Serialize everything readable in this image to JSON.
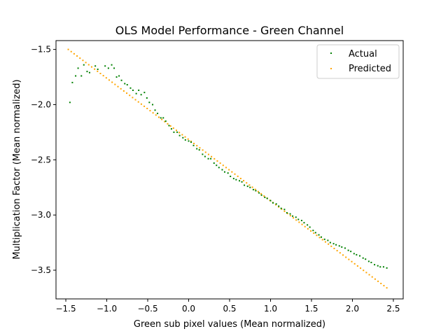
{
  "chart_data": {
    "type": "scatter",
    "title": "OLS Model Performance - Green Channel",
    "xlabel": "Green sub pixel values (Mean normalized)",
    "ylabel": "Multiplication Factor (Mean normalized)",
    "xlim": [
      -1.62,
      2.62
    ],
    "ylim": [
      -3.76,
      -1.42
    ],
    "xticks": [
      -1.5,
      -1.0,
      -0.5,
      0.0,
      0.5,
      1.0,
      1.5,
      2.0,
      2.5
    ],
    "xtick_labels": [
      "−1.5",
      "−1.0",
      "−0.5",
      "0.0",
      "0.5",
      "1.0",
      "1.5",
      "2.0",
      "2.5"
    ],
    "yticks": [
      -1.5,
      -2.0,
      -2.5,
      -3.0,
      -3.5
    ],
    "ytick_labels": [
      "−1.5",
      "−2.0",
      "−2.5",
      "−3.0",
      "−3.5"
    ],
    "grid": false,
    "legend_position": "top-right",
    "series": [
      {
        "name": "Actual",
        "color": "#008000",
        "points": [
          [
            -1.45,
            -1.98
          ],
          [
            -1.42,
            -1.8
          ],
          [
            -1.38,
            -1.74
          ],
          [
            -1.35,
            -1.67
          ],
          [
            -1.31,
            -1.74
          ],
          [
            -1.28,
            -1.64
          ],
          [
            -1.24,
            -1.7
          ],
          [
            -1.21,
            -1.71
          ],
          [
            -1.14,
            -1.65
          ],
          [
            -1.11,
            -1.68
          ],
          [
            -1.02,
            -1.65
          ],
          [
            -0.98,
            -1.67
          ],
          [
            -0.94,
            -1.64
          ],
          [
            -0.91,
            -1.67
          ],
          [
            -0.88,
            -1.75
          ],
          [
            -0.85,
            -1.74
          ],
          [
            -0.82,
            -1.78
          ],
          [
            -0.78,
            -1.81
          ],
          [
            -0.75,
            -1.82
          ],
          [
            -0.71,
            -1.85
          ],
          [
            -0.68,
            -1.87
          ],
          [
            -0.64,
            -1.9
          ],
          [
            -0.61,
            -1.87
          ],
          [
            -0.58,
            -1.91
          ],
          [
            -0.54,
            -1.89
          ],
          [
            -0.51,
            -1.94
          ],
          [
            -0.48,
            -1.98
          ],
          [
            -0.44,
            -2.0
          ],
          [
            -0.41,
            -2.05
          ],
          [
            -0.38,
            -2.08
          ],
          [
            -0.34,
            -2.12
          ],
          [
            -0.31,
            -2.12
          ],
          [
            -0.28,
            -2.15
          ],
          [
            -0.24,
            -2.19
          ],
          [
            -0.21,
            -2.22
          ],
          [
            -0.18,
            -2.25
          ],
          [
            -0.14,
            -2.25
          ],
          [
            -0.11,
            -2.28
          ],
          [
            -0.07,
            -2.3
          ],
          [
            -0.04,
            -2.32
          ],
          [
            0.0,
            -2.33
          ],
          [
            0.03,
            -2.34
          ],
          [
            0.06,
            -2.37
          ],
          [
            0.1,
            -2.4
          ],
          [
            0.13,
            -2.41
          ],
          [
            0.17,
            -2.45
          ],
          [
            0.2,
            -2.47
          ],
          [
            0.24,
            -2.49
          ],
          [
            0.27,
            -2.49
          ],
          [
            0.31,
            -2.53
          ],
          [
            0.34,
            -2.55
          ],
          [
            0.37,
            -2.57
          ],
          [
            0.41,
            -2.59
          ],
          [
            0.44,
            -2.61
          ],
          [
            0.48,
            -2.62
          ],
          [
            0.51,
            -2.65
          ],
          [
            0.55,
            -2.67
          ],
          [
            0.58,
            -2.68
          ],
          [
            0.62,
            -2.69
          ],
          [
            0.65,
            -2.7
          ],
          [
            0.68,
            -2.73
          ],
          [
            0.72,
            -2.74
          ],
          [
            0.75,
            -2.75
          ],
          [
            0.79,
            -2.77
          ],
          [
            0.82,
            -2.78
          ],
          [
            0.86,
            -2.8
          ],
          [
            0.89,
            -2.82
          ],
          [
            0.93,
            -2.84
          ],
          [
            0.96,
            -2.85
          ],
          [
            1.0,
            -2.87
          ],
          [
            1.03,
            -2.89
          ],
          [
            1.07,
            -2.9
          ],
          [
            1.1,
            -2.92
          ],
          [
            1.13,
            -2.94
          ],
          [
            1.17,
            -2.95
          ],
          [
            1.2,
            -2.98
          ],
          [
            1.24,
            -2.99
          ],
          [
            1.27,
            -3.01
          ],
          [
            1.31,
            -3.02
          ],
          [
            1.34,
            -3.04
          ],
          [
            1.38,
            -3.05
          ],
          [
            1.41,
            -3.07
          ],
          [
            1.45,
            -3.09
          ],
          [
            1.48,
            -3.11
          ],
          [
            1.52,
            -3.14
          ],
          [
            1.55,
            -3.16
          ],
          [
            1.59,
            -3.18
          ],
          [
            1.62,
            -3.2
          ],
          [
            1.66,
            -3.22
          ],
          [
            1.7,
            -3.23
          ],
          [
            1.73,
            -3.25
          ],
          [
            1.77,
            -3.26
          ],
          [
            1.8,
            -3.27
          ],
          [
            1.84,
            -3.28
          ],
          [
            1.87,
            -3.29
          ],
          [
            1.91,
            -3.3
          ],
          [
            1.95,
            -3.32
          ],
          [
            1.98,
            -3.33
          ],
          [
            2.02,
            -3.35
          ],
          [
            2.05,
            -3.36
          ],
          [
            2.09,
            -3.37
          ],
          [
            2.13,
            -3.39
          ],
          [
            2.16,
            -3.4
          ],
          [
            2.2,
            -3.42
          ],
          [
            2.23,
            -3.43
          ],
          [
            2.27,
            -3.45
          ],
          [
            2.31,
            -3.46
          ],
          [
            2.34,
            -3.47
          ],
          [
            2.38,
            -3.47
          ],
          [
            2.42,
            -3.48
          ]
        ]
      },
      {
        "name": "Predicted",
        "color": "#ffa500",
        "line": {
          "x_start": -1.47,
          "x_end": 2.42,
          "y_start": -1.5,
          "y_end": -3.66,
          "count": 110
        }
      }
    ]
  }
}
